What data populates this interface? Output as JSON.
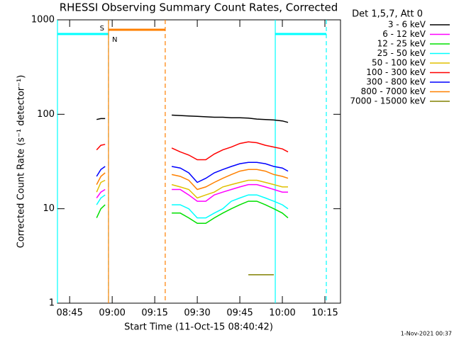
{
  "chart_data": {
    "type": "line",
    "title": "RHESSI Observing Summary Count Rates, Corrected",
    "x_label": "Start Time (11-Oct-15 08:40:42)",
    "y_label": "Corrected Count Rate (s⁻¹ detector⁻¹)",
    "legend_title": "Det 1,5,7, Att 0",
    "footer": "1-Nov-2021 00:37",
    "log_y": true,
    "xlim": [
      520.7,
      620.5
    ],
    "xticks": [
      {
        "value": 525,
        "label": "08:45"
      },
      {
        "value": 540,
        "label": "09:00"
      },
      {
        "value": 555,
        "label": "09:15"
      },
      {
        "value": 570,
        "label": "09:30"
      },
      {
        "value": 585,
        "label": "09:45"
      },
      {
        "value": 600,
        "label": "10:00"
      },
      {
        "value": 615,
        "label": "10:15"
      }
    ],
    "ylim": [
      1,
      1000
    ],
    "yticks": [
      1,
      10,
      100,
      1000
    ],
    "x": [
      534.5,
      536,
      537.5,
      550,
      561,
      564,
      567,
      570,
      573,
      576,
      579,
      582,
      585,
      588,
      591,
      594,
      597,
      600,
      602
    ],
    "series": [
      {
        "name": "3 - 6 keV",
        "color": "#000000",
        "values": [
          88,
          90,
          90,
          null,
          98,
          97,
          96,
          95,
          94,
          93,
          93,
          92,
          92,
          91,
          89,
          88,
          87,
          85,
          82
        ]
      },
      {
        "name": "6 - 12 keV",
        "color": "#ff00ff",
        "values": [
          13,
          15,
          16,
          null,
          16,
          16,
          14,
          12,
          12,
          14,
          15,
          16,
          17,
          18,
          18,
          17,
          16,
          15,
          15
        ]
      },
      {
        "name": "12 - 25 keV",
        "color": "#00e000",
        "values": [
          8,
          10,
          11,
          null,
          9,
          9,
          8,
          7,
          7,
          8,
          9,
          10,
          11,
          12,
          12,
          11,
          10,
          9,
          8
        ]
      },
      {
        "name": "25 - 50 keV",
        "color": "#00ffff",
        "values": [
          11,
          13,
          14,
          null,
          11,
          11,
          10,
          8,
          8,
          9,
          10,
          12,
          13,
          14,
          14,
          13,
          12,
          11,
          10
        ]
      },
      {
        "name": "50 - 100 keV",
        "color": "#e0c000",
        "values": [
          15,
          19,
          20,
          null,
          18,
          17,
          16,
          13,
          14,
          15,
          17,
          18,
          19,
          20,
          20,
          19,
          18,
          17,
          17
        ]
      },
      {
        "name": "100 - 300 keV",
        "color": "#ff0000",
        "values": [
          42,
          47,
          48,
          null,
          44,
          40,
          37,
          33,
          33,
          38,
          42,
          45,
          49,
          51,
          50,
          47,
          45,
          43,
          40
        ]
      },
      {
        "name": "300 - 800 keV",
        "color": "#0000ff",
        "values": [
          22,
          26,
          28,
          null,
          28,
          27,
          24,
          19,
          21,
          24,
          26,
          28,
          30,
          31,
          31,
          30,
          28,
          27,
          25
        ]
      },
      {
        "name": "800 - 7000 keV",
        "color": "#ff8000",
        "values": [
          18,
          22,
          24,
          null,
          23,
          22,
          20,
          16,
          17,
          19,
          21,
          23,
          25,
          26,
          26,
          25,
          23,
          22,
          21
        ]
      },
      {
        "name": "7000 - 15000 keV",
        "color": "#808000",
        "values": [
          null,
          null,
          null,
          null,
          null,
          null,
          null,
          null,
          null,
          null,
          null,
          null,
          null,
          2,
          2,
          2,
          2,
          null,
          null
        ]
      }
    ],
    "intervals": [
      {
        "kind": "night",
        "color": "#00ffff",
        "start": 520.7,
        "end": 538.7,
        "label": "N"
      },
      {
        "kind": "saa",
        "color": "#ff8000",
        "start": 538.7,
        "end": 558.7,
        "label": "S"
      },
      {
        "kind": "night",
        "color": "#00ffff",
        "start": 597.5,
        "end": 615.5
      }
    ]
  }
}
